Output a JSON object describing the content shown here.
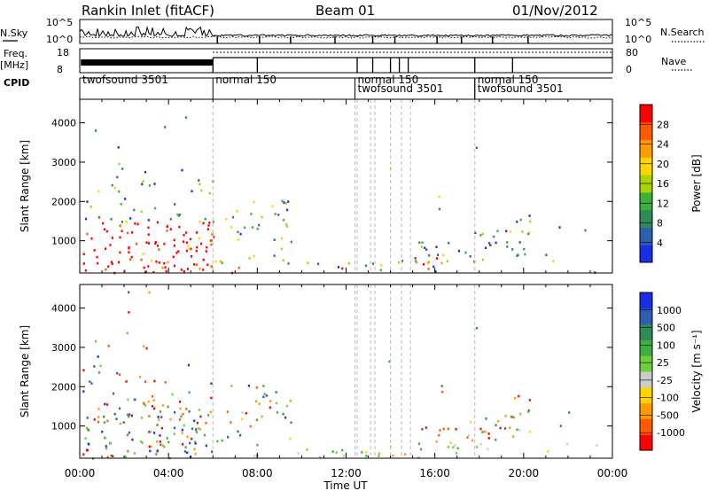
{
  "header": {
    "station": "Rankin Inlet (fitACF)",
    "beam": "Beam 01",
    "date": "01/Nov/2012"
  },
  "status_panels": {
    "nsky_label": "N.Sky",
    "nsky_ticks": [
      "10^5",
      "10^0"
    ],
    "nsearch_label": "N.Search",
    "nsearch_ticks": [
      "10^5",
      "10^0"
    ],
    "freq_label_line1": "Freq.",
    "freq_label_line2": "[MHz]",
    "freq_ticks": [
      "18",
      "8"
    ],
    "nave_label": "Nave",
    "nave_ticks": [
      "80",
      "0"
    ],
    "cpid_label": "CPID"
  },
  "cpid_modes": [
    {
      "start": 0.0,
      "label": "twofsound 3501"
    },
    {
      "start": 6.0,
      "label": "normal 150"
    },
    {
      "start": 12.4,
      "label": "twofsound 3501"
    },
    {
      "start": 12.4,
      "label": "normal 150"
    },
    {
      "start": 17.8,
      "label": "normal 150"
    },
    {
      "start": 17.8,
      "label": "twofsound 3501"
    }
  ],
  "power_colorbar": {
    "title": "Power [dB]",
    "ticks": [
      "28",
      "24",
      "20",
      "16",
      "12",
      "8",
      "4"
    ],
    "colors": [
      "#ff0000",
      "#ff5a00",
      "#ff9a00",
      "#ffd400",
      "#a8d400",
      "#3caf3c",
      "#2e8b57",
      "#2d5fb0",
      "#1a2ee6"
    ]
  },
  "velocity_colorbar": {
    "title": "Velocity [m s⁻¹]",
    "ticks": [
      "1000",
      "500",
      "100",
      "25",
      "-25",
      "-100",
      "-500",
      "-1000"
    ],
    "colors": [
      "#1a2ee6",
      "#2d5fb0",
      "#2e8b57",
      "#3caf3c",
      "#6fcf3a",
      "#cccccc",
      "#ffd400",
      "#ff9a00",
      "#ff5a00",
      "#ff0000"
    ]
  },
  "chart_data": [
    {
      "type": "heatmap",
      "title": "",
      "quantity": "Power",
      "unit": "dB",
      "xlabel": "Time UT",
      "ylabel": "Slant Range [km]",
      "xlim": [
        0,
        24
      ],
      "ylim": [
        180,
        4600
      ],
      "x_ticks": [
        "00:00",
        "04:00",
        "08:00",
        "12:00",
        "16:00",
        "20:00",
        "00:00"
      ],
      "y_ticks": [
        1000,
        2000,
        3000,
        4000
      ],
      "color_range": [
        0,
        30
      ]
    },
    {
      "type": "heatmap",
      "title": "",
      "quantity": "Velocity",
      "unit": "m s^-1",
      "xlabel": "Time UT",
      "ylabel": "Slant Range [km]",
      "xlim": [
        0,
        24
      ],
      "ylim": [
        180,
        4600
      ],
      "x_ticks": [
        "00:00",
        "04:00",
        "08:00",
        "12:00",
        "16:00",
        "20:00",
        "00:00"
      ],
      "y_ticks": [
        1000,
        2000,
        3000,
        4000
      ],
      "color_range": [
        -1000,
        1000
      ]
    }
  ],
  "mode_change_times": [
    6.0,
    12.4,
    12.5,
    13.1,
    13.3,
    14.0,
    14.5,
    14.9,
    17.8
  ],
  "xaxis_title": "Time UT",
  "yaxis_title": "Slant Range [km]"
}
